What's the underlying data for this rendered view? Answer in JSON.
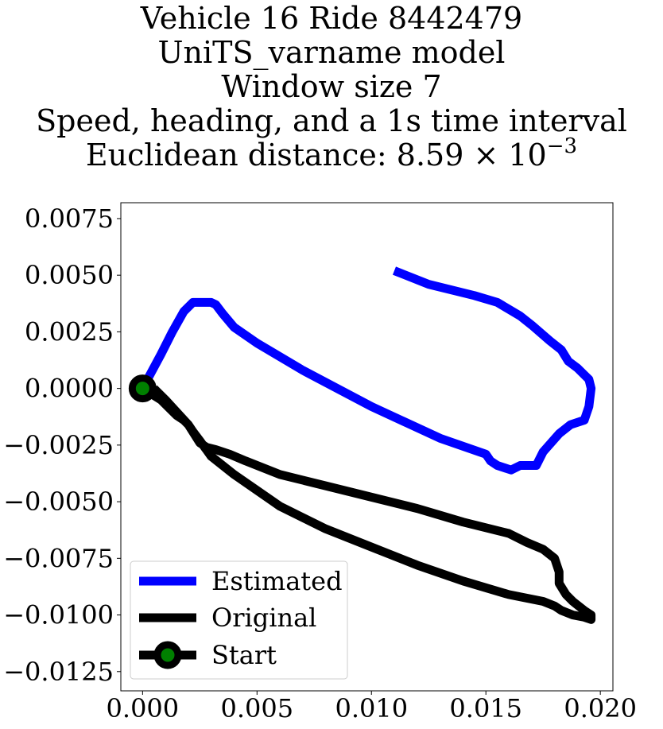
{
  "chart_data": {
    "type": "line",
    "title_lines": [
      "Vehicle 16 Ride 8442479",
      "UniTS_varname model",
      "Window size 7",
      "Speed, heading, and a 1s time interval"
    ],
    "title_distance_prefix": "Euclidean distance: 8.59",
    "title_distance_times": "×",
    "title_distance_base": "10",
    "title_distance_exp": "−3",
    "xlabel": "",
    "ylabel": "",
    "xlim": [
      -0.00095,
      0.02055
    ],
    "ylim": [
      -0.01335,
      0.0082
    ],
    "x_ticks": [
      {
        "value": 0.0,
        "label": "0.000"
      },
      {
        "value": 0.005,
        "label": "0.005"
      },
      {
        "value": 0.01,
        "label": "0.010"
      },
      {
        "value": 0.015,
        "label": "0.015"
      },
      {
        "value": 0.02,
        "label": "0.020"
      }
    ],
    "y_ticks": [
      {
        "value": 0.0075,
        "label": "0.0075"
      },
      {
        "value": 0.005,
        "label": "0.0050"
      },
      {
        "value": 0.0025,
        "label": "0.0025"
      },
      {
        "value": 0.0,
        "label": "0.0000"
      },
      {
        "value": -0.0025,
        "label": "−0.0025"
      },
      {
        "value": -0.005,
        "label": "−0.0050"
      },
      {
        "value": -0.0075,
        "label": "−0.0075"
      },
      {
        "value": -0.01,
        "label": "−0.0100"
      },
      {
        "value": -0.0125,
        "label": "−0.0125"
      }
    ],
    "grid": false,
    "legend_position": "bottom-left",
    "series": [
      {
        "name": "Estimated",
        "color": "#0000ff",
        "x": [
          0.0,
          0.0008,
          0.0013,
          0.0018,
          0.0022,
          0.0026,
          0.003,
          0.0032,
          0.0035,
          0.004,
          0.005,
          0.007,
          0.01,
          0.013,
          0.015,
          0.0152,
          0.0155,
          0.0161,
          0.0165,
          0.0172,
          0.0175,
          0.0182,
          0.0187,
          0.0193,
          0.0195,
          0.0196,
          0.0195,
          0.0193,
          0.019,
          0.0186,
          0.0183,
          0.0178,
          0.017,
          0.0165,
          0.0155,
          0.0145,
          0.0125,
          0.011
        ],
        "y": [
          0.0,
          0.0015,
          0.0025,
          0.0034,
          0.0038,
          0.0038,
          0.0038,
          0.0037,
          0.0033,
          0.0027,
          0.002,
          0.0008,
          -0.0008,
          -0.0022,
          -0.0029,
          -0.0032,
          -0.0034,
          -0.0036,
          -0.0034,
          -0.0034,
          -0.0028,
          -0.002,
          -0.0016,
          -0.0014,
          -0.0008,
          0.0,
          0.0004,
          0.0006,
          0.0009,
          0.0012,
          0.0017,
          0.0021,
          0.0028,
          0.0032,
          0.0038,
          0.0041,
          0.0046,
          0.0052
        ]
      },
      {
        "name": "Original",
        "color": "#000000",
        "x": [
          0.0,
          0.0008,
          0.0012,
          0.0015,
          0.0018,
          0.002,
          0.0022,
          0.0025,
          0.003,
          0.004,
          0.006,
          0.008,
          0.01,
          0.012,
          0.014,
          0.016,
          0.0175,
          0.018,
          0.0183,
          0.0188,
          0.0193,
          0.0196,
          0.0196,
          0.0193,
          0.0188,
          0.0185,
          0.0182,
          0.0182,
          0.018,
          0.0175,
          0.0168,
          0.016,
          0.014,
          0.012,
          0.01,
          0.008,
          0.006,
          0.0045,
          0.0038,
          0.0032,
          0.0028,
          0.0025,
          0.002,
          0.001,
          0.0005
        ],
        "y": [
          0.0,
          -0.0005,
          -0.0009,
          -0.0012,
          -0.0014,
          -0.0016,
          -0.0019,
          -0.0023,
          -0.003,
          -0.0038,
          -0.0052,
          -0.0062,
          -0.007,
          -0.0078,
          -0.0085,
          -0.0091,
          -0.0094,
          -0.0096,
          -0.0098,
          -0.01,
          -0.0101,
          -0.0102,
          -0.01,
          -0.0098,
          -0.0094,
          -0.0091,
          -0.0086,
          -0.0081,
          -0.0075,
          -0.0071,
          -0.0068,
          -0.0064,
          -0.0059,
          -0.0053,
          -0.0048,
          -0.0043,
          -0.0038,
          -0.0032,
          -0.0029,
          -0.0027,
          -0.0026,
          -0.0024,
          -0.0016,
          -0.0005,
          0.0
        ]
      }
    ],
    "start_point": {
      "name": "Start",
      "x": 0.0,
      "y": 0.0,
      "edge_color": "#000000",
      "face_color": "#008000"
    }
  }
}
